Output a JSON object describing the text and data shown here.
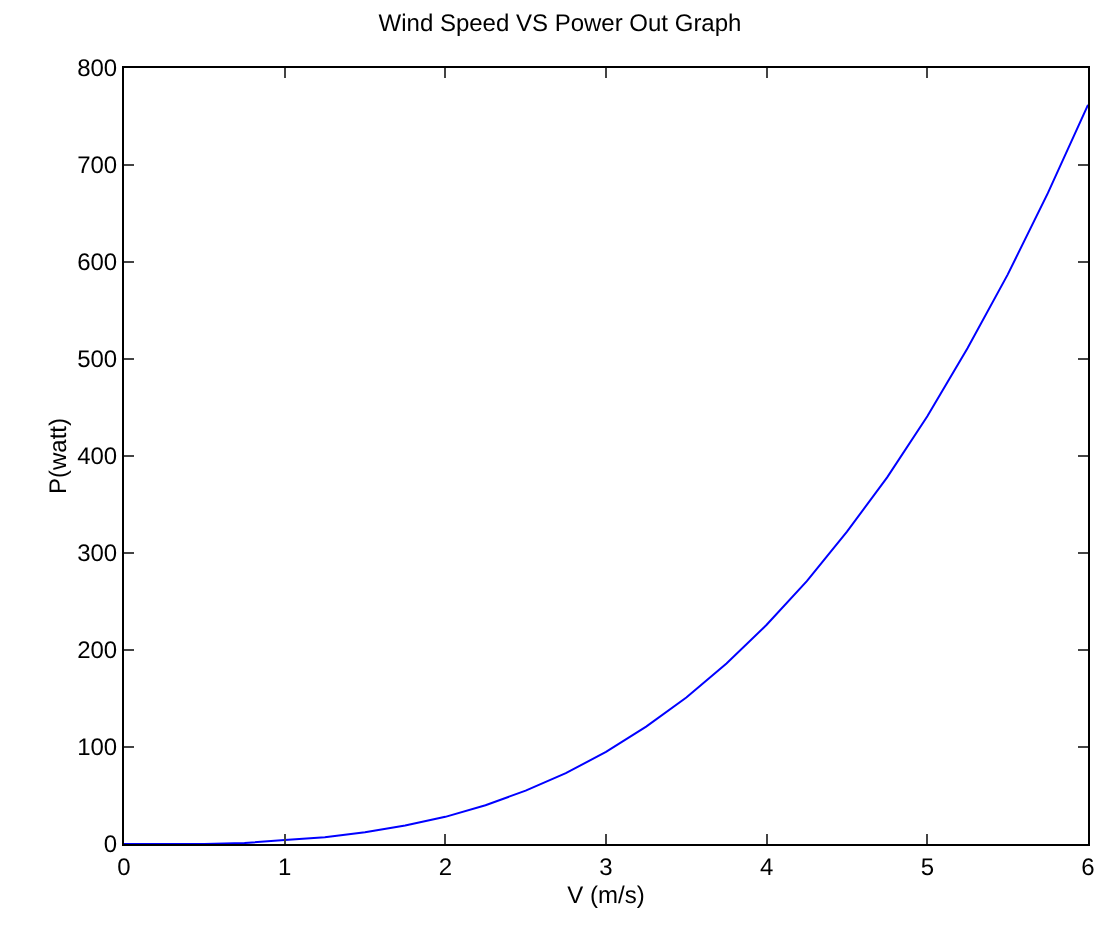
{
  "chart_data": {
    "type": "line",
    "title": "Wind Speed VS Power Out Graph",
    "xlabel": "V (m/s)",
    "ylabel": "P(watt)",
    "x": [
      0,
      0.25,
      0.5,
      0.75,
      1,
      1.25,
      1.5,
      1.75,
      2,
      2.25,
      2.5,
      2.75,
      3,
      3.25,
      3.5,
      3.75,
      4,
      4.25,
      4.5,
      4.75,
      5,
      5.25,
      5.5,
      5.75,
      6
    ],
    "series": [
      {
        "color": "#0000ff",
        "values": [
          0,
          0,
          0,
          1,
          4,
          7,
          12,
          19,
          28,
          40,
          55,
          73,
          95,
          121,
          151,
          186,
          226,
          271,
          322,
          378,
          441,
          511,
          587,
          671,
          762
        ]
      }
    ],
    "xlim": [
      0,
      6
    ],
    "ylim": [
      0,
      800
    ],
    "xticks": [
      0,
      1,
      2,
      3,
      4,
      5,
      6
    ],
    "yticks": [
      0,
      100,
      200,
      300,
      400,
      500,
      600,
      700,
      800
    ],
    "marker": "none",
    "line_style": "solid"
  }
}
